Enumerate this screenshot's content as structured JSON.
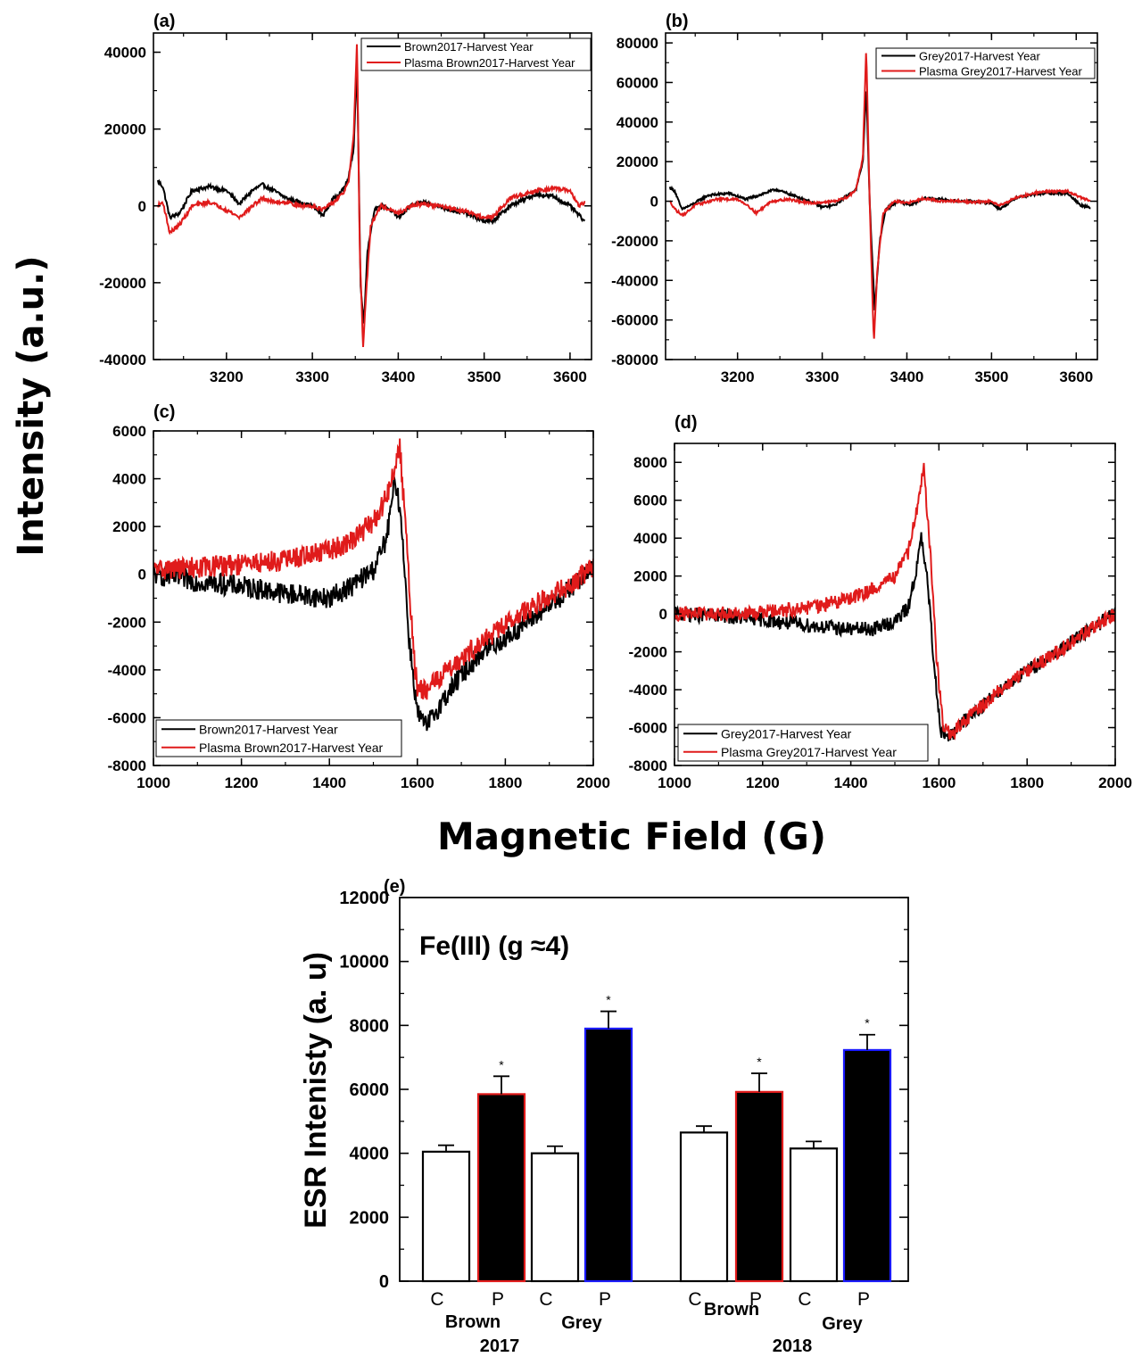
{
  "figure": {
    "ylabel": "Intensity (a.u.)",
    "xlabel": "Magnetic Field (G)"
  },
  "chart_data": [
    {
      "panel": "(a)",
      "type": "line",
      "xlim": [
        3115,
        3625
      ],
      "ylim": [
        -40000,
        45000
      ],
      "xticks": [
        "3200",
        "3300",
        "3400",
        "3500",
        "3600"
      ],
      "yticks": [
        "-40000",
        "-20000",
        "0",
        "20000",
        "40000"
      ],
      "legend": "top-right",
      "series": [
        {
          "name": "Brown2017-Harvest Year",
          "color": "#000000",
          "noise": 500,
          "x": [
            3120,
            3126,
            3134,
            3145,
            3160,
            3180,
            3200,
            3215,
            3230,
            3242,
            3255,
            3270,
            3285,
            3300,
            3312,
            3325,
            3335,
            3342,
            3348,
            3352,
            3356,
            3360,
            3364,
            3372,
            3385,
            3400,
            3415,
            3430,
            3445,
            3460,
            3480,
            3500,
            3510,
            3530,
            3560,
            3580,
            3600,
            3617
          ],
          "y": [
            6500,
            5000,
            -3000,
            -2000,
            4000,
            5000,
            4000,
            500,
            4000,
            5500,
            4000,
            2000,
            1000,
            0,
            -2500,
            2000,
            4000,
            7000,
            15000,
            37000,
            -20000,
            -31000,
            -12000,
            -1000,
            0,
            -3000,
            0,
            1000,
            0,
            -1000,
            -2000,
            -4000,
            -4000,
            0,
            3000,
            2500,
            0,
            -4000
          ]
        },
        {
          "name": "Plasma Brown2017-Harvest Year",
          "color": "#e01b1b",
          "noise": 500,
          "x": [
            3120,
            3126,
            3134,
            3145,
            3160,
            3180,
            3200,
            3215,
            3230,
            3242,
            3255,
            3270,
            3285,
            3300,
            3312,
            3325,
            3335,
            3342,
            3348,
            3352,
            3355,
            3359,
            3362,
            3368,
            3380,
            3400,
            3415,
            3430,
            3445,
            3460,
            3480,
            3500,
            3510,
            3530,
            3560,
            3580,
            3600,
            3610,
            3617
          ],
          "y": [
            0,
            1000,
            -7000,
            -5000,
            0,
            1000,
            -1000,
            -3000,
            0,
            2000,
            1000,
            1000,
            0,
            0,
            -1000,
            1000,
            3000,
            6000,
            18000,
            43000,
            -10000,
            -37000,
            -25000,
            -5000,
            0,
            -2000,
            0,
            500,
            0,
            -500,
            -1500,
            -3000,
            -3000,
            2000,
            4000,
            4500,
            4000,
            0,
            1000
          ]
        }
      ]
    },
    {
      "panel": "(b)",
      "type": "line",
      "xlim": [
        3115,
        3625
      ],
      "ylim": [
        -80000,
        85000
      ],
      "xticks": [
        "3200",
        "3300",
        "3400",
        "3500",
        "3600"
      ],
      "yticks": [
        "-80000",
        "-60000",
        "-40000",
        "-20000",
        "0",
        "20000",
        "40000",
        "60000",
        "80000"
      ],
      "legend": "top-right",
      "series": [
        {
          "name": "Grey2017-Harvest Year",
          "color": "#000000",
          "noise": 600,
          "x": [
            3120,
            3126,
            3134,
            3145,
            3165,
            3190,
            3210,
            3225,
            3245,
            3265,
            3285,
            3300,
            3315,
            3330,
            3340,
            3348,
            3352,
            3356,
            3362,
            3368,
            3375,
            3390,
            3405,
            3420,
            3440,
            3460,
            3480,
            3500,
            3510,
            3530,
            3560,
            3590,
            3605,
            3617
          ],
          "y": [
            7000,
            5000,
            -4000,
            -2000,
            3000,
            4000,
            1000,
            3000,
            6000,
            3000,
            0,
            -3000,
            -2000,
            3000,
            6000,
            20000,
            58000,
            0,
            -55000,
            -20000,
            -4000,
            0,
            -2000,
            1500,
            1000,
            0,
            0,
            -1000,
            -4000,
            2000,
            4000,
            4000,
            -2000,
            -3000
          ]
        },
        {
          "name": "Plasma Grey2017-Harvest Year",
          "color": "#e01b1b",
          "noise": 600,
          "x": [
            3120,
            3128,
            3136,
            3150,
            3175,
            3200,
            3212,
            3222,
            3240,
            3260,
            3285,
            3300,
            3315,
            3330,
            3340,
            3348,
            3352,
            3356,
            3361,
            3365,
            3372,
            3385,
            3400,
            3420,
            3440,
            3460,
            3480,
            3500,
            3510,
            3530,
            3560,
            3590,
            3605,
            3617
          ],
          "y": [
            0,
            -5000,
            -7000,
            -2000,
            1000,
            1000,
            -2000,
            -6000,
            0,
            1000,
            -1000,
            -500,
            0,
            2000,
            6000,
            22000,
            78000,
            0,
            -72000,
            -35000,
            -6000,
            0,
            -1000,
            1500,
            0,
            0,
            -500,
            0,
            -2000,
            2000,
            5000,
            5000,
            2000,
            0
          ]
        }
      ]
    },
    {
      "panel": "(c)",
      "type": "line",
      "xlim": [
        1000,
        2000
      ],
      "ylim": [
        -8000,
        6000
      ],
      "xticks": [
        "1000",
        "1200",
        "1400",
        "1600",
        "1800",
        "2000"
      ],
      "yticks": [
        "-8000",
        "-6000",
        "-4000",
        "-2000",
        "0",
        "2000",
        "4000",
        "6000"
      ],
      "legend": "bottom-left",
      "series": [
        {
          "name": "Brown2017-Harvest Year",
          "color": "#000000",
          "noise": 450,
          "x": [
            1000,
            1100,
            1200,
            1300,
            1400,
            1450,
            1500,
            1530,
            1550,
            1565,
            1580,
            1600,
            1620,
            1650,
            1700,
            1750,
            1800,
            1850,
            1900,
            1950,
            2000
          ],
          "y": [
            0,
            -300,
            -500,
            -800,
            -1000,
            -500,
            200,
            1500,
            4000,
            2000,
            -2500,
            -5800,
            -6400,
            -5500,
            -4200,
            -3200,
            -2700,
            -2000,
            -1300,
            -600,
            300
          ]
        },
        {
          "name": "Plasma Brown2017-Harvest Year",
          "color": "#e01b1b",
          "noise": 450,
          "x": [
            1000,
            1100,
            1200,
            1300,
            1400,
            1450,
            1500,
            1530,
            1550,
            1560,
            1575,
            1590,
            1600,
            1620,
            1650,
            1700,
            1750,
            1800,
            1850,
            1900,
            1950,
            2000
          ],
          "y": [
            200,
            300,
            400,
            600,
            1000,
            1400,
            2200,
            3200,
            4600,
            5400,
            1500,
            -3000,
            -4800,
            -4900,
            -4300,
            -3500,
            -2800,
            -2100,
            -1500,
            -900,
            -400,
            300
          ]
        }
      ]
    },
    {
      "panel": "(d)",
      "type": "line",
      "xlim": [
        1000,
        2000
      ],
      "ylim": [
        -8000,
        9000
      ],
      "xticks": [
        "1000",
        "1200",
        "1400",
        "1600",
        "1800",
        "2000"
      ],
      "yticks": [
        "-8000",
        "-6000",
        "-4000",
        "-2000",
        "0",
        "2000",
        "4000",
        "6000",
        "8000"
      ],
      "legend": "bottom-left",
      "series": [
        {
          "name": "Grey2017-Harvest Year",
          "color": "#000000",
          "noise": 380,
          "x": [
            1000,
            1100,
            1200,
            1300,
            1400,
            1450,
            1500,
            1530,
            1550,
            1560,
            1575,
            1590,
            1605,
            1625,
            1650,
            1700,
            1750,
            1800,
            1850,
            1900,
            1950,
            2000
          ],
          "y": [
            0,
            -100,
            -300,
            -600,
            -800,
            -800,
            -400,
            300,
            2500,
            4000,
            1500,
            -3000,
            -6200,
            -6500,
            -5800,
            -4800,
            -3800,
            -3000,
            -2300,
            -1500,
            -700,
            0
          ]
        },
        {
          "name": "Plasma Grey2017-Harvest Year",
          "color": "#e01b1b",
          "noise": 380,
          "x": [
            1000,
            1100,
            1200,
            1300,
            1400,
            1450,
            1500,
            1530,
            1550,
            1565,
            1580,
            1595,
            1610,
            1630,
            1650,
            1700,
            1750,
            1800,
            1850,
            1900,
            1950,
            2000
          ],
          "y": [
            0,
            0,
            100,
            300,
            800,
            1300,
            2000,
            3200,
            5500,
            7800,
            3500,
            -2500,
            -6000,
            -6400,
            -5800,
            -4800,
            -3800,
            -3000,
            -2300,
            -1500,
            -700,
            0
          ]
        }
      ]
    },
    {
      "panel": "(e)",
      "type": "bar",
      "annotation": "Fe(III) (g ≈4)",
      "ylabel": "ESR Intenisty (a. u)",
      "ylim": [
        0,
        12000
      ],
      "yticks": [
        "0",
        "2000",
        "4000",
        "6000",
        "8000",
        "10000",
        "12000"
      ],
      "categories": [
        "C",
        "P",
        "C",
        "P",
        "C",
        "P",
        "C",
        "P"
      ],
      "groups": [
        {
          "label": "Brown",
          "year": "2017"
        },
        {
          "label": "Grey",
          "year": "2017"
        },
        {
          "label": "Brown",
          "year": "2018"
        },
        {
          "label": "Grey",
          "year": "2018"
        }
      ],
      "years": [
        "2017",
        "2018"
      ],
      "values": [
        4050,
        5850,
        4000,
        7900,
        4650,
        5920,
        4150,
        7230
      ],
      "errors": [
        200,
        560,
        220,
        540,
        200,
        580,
        220,
        480
      ],
      "significance": [
        "",
        "*",
        "",
        "*",
        "",
        "*",
        "",
        "*"
      ],
      "fills": [
        "#ffffff",
        "#000000",
        "#ffffff",
        "#000000",
        "#ffffff",
        "#000000",
        "#ffffff",
        "#000000"
      ],
      "edges": [
        "#000000",
        "#e01b1b",
        "#000000",
        "#1a1aff",
        "#000000",
        "#e01b1b",
        "#000000",
        "#1a1aff"
      ]
    }
  ]
}
